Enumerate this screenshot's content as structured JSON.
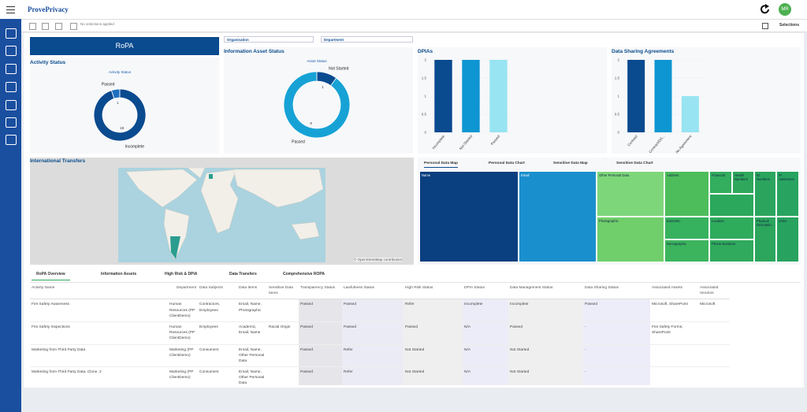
{
  "header": {
    "logo": "ProvePrivacy",
    "avatar": "MR",
    "selections_status": "No selections applied",
    "selections": "Selections"
  },
  "banner": "RoPA",
  "filters": [
    "Organisation",
    "Department"
  ],
  "chart_data": [
    {
      "type": "pie",
      "title": "Activity Status",
      "subtitle": "Activity Status",
      "categories": [
        "Passed",
        "Incomplete"
      ],
      "values": [
        1,
        18
      ],
      "colors": [
        "#1e6fc0",
        "#0a4a8f"
      ]
    },
    {
      "type": "pie",
      "title": "Information Asset Status",
      "subtitle": "Asset Status",
      "categories": [
        "Not Started",
        "Passed"
      ],
      "values": [
        1,
        9
      ],
      "colors": [
        "#0a4a8f",
        "#17a2d6"
      ]
    },
    {
      "type": "bar",
      "title": "DPIAs",
      "categories": [
        "Incomplete",
        "Not Started",
        "Passed"
      ],
      "values": [
        2,
        2,
        2
      ],
      "colors": [
        "#0a4a8f",
        "#0e96d2",
        "#98e4f2"
      ],
      "ylim": [
        0,
        2
      ],
      "yticks": [
        0,
        0.5,
        1,
        1.5,
        2
      ]
    },
    {
      "type": "bar",
      "title": "Data Sharing Agreements",
      "categories": [
        "Contract",
        "Contract/DS...",
        "No Agreement"
      ],
      "values": [
        2,
        2,
        1
      ],
      "colors": [
        "#0a4a8f",
        "#0e96d2",
        "#98e4f2"
      ],
      "ylim": [
        0,
        2
      ],
      "yticks": [
        0,
        0.5,
        1,
        1.5,
        2
      ]
    }
  ],
  "map": {
    "title": "International Transfers",
    "attribution": "© OpenStreetMap contributors"
  },
  "treemap": {
    "tabs": [
      "Personal Data Map",
      "Personal Data Chart",
      "Sensitive Data Map",
      "Sensitive Data Chart"
    ],
    "cells": [
      "Name",
      "Email",
      "Other Personal Data",
      "Address",
      "Financial",
      "Health Numbers",
      "ID Numbers",
      "IP Addresses",
      "Photographic",
      "Biometric",
      "Location",
      "Physical Descriptio...",
      "Voice",
      "Demographic",
      "Phone Numbers"
    ]
  },
  "table": {
    "tabs": [
      "RoPA Overview",
      "Information Assets",
      "High Risk & DPIA",
      "Data Transfers",
      "Comprehensive ROPA"
    ],
    "columns": [
      "Activity Name",
      "Department",
      "Data Subjects",
      "Data Items",
      "Sensitive Data Items",
      "Transparency Status",
      "Lawfulness Status",
      "High Risk Status",
      "DPIA Status",
      "Data Management Status",
      "Data Sharing Status",
      "Associated Assets",
      "Associated Vendors"
    ],
    "rows": [
      [
        "Fire Safety Awareness",
        "Human Resources (PP ClientDemo)",
        "Contractors, Employees",
        "Email, Name, Photographic",
        null,
        "Passed",
        "Passed",
        "Refer",
        "Incomplete",
        "Incomplete",
        "Passed",
        "Microsoft, SharePoint",
        "Microsoft"
      ],
      [
        "Fire Safety Inspections",
        "Human Resources (PP ClientDemo)",
        "Employees",
        "Academic, Email, Name",
        "Racial Origin",
        "Passed",
        "Passed",
        "Passed",
        "N/A",
        "Passed",
        "-",
        "Fire Safety Forms, SharePoint",
        null
      ],
      [
        "Marketing from Third Party Data",
        "Marketing (PP ClientDemo)",
        "Consumers",
        "Email, Name, Other Personal Data",
        null,
        "Passed",
        "Refer",
        "Not Started",
        "N/A",
        "Not Started",
        "-",
        null,
        null
      ],
      [
        "Marketing from Third Party Data, Clone, 2",
        "Marketing (PP ClientDemo)",
        "Consumers",
        "Email, Name, Other Personal Data",
        null,
        "Passed",
        "Refer",
        "Not Started",
        "N/A",
        "Not Started",
        "-",
        null,
        null
      ]
    ]
  }
}
